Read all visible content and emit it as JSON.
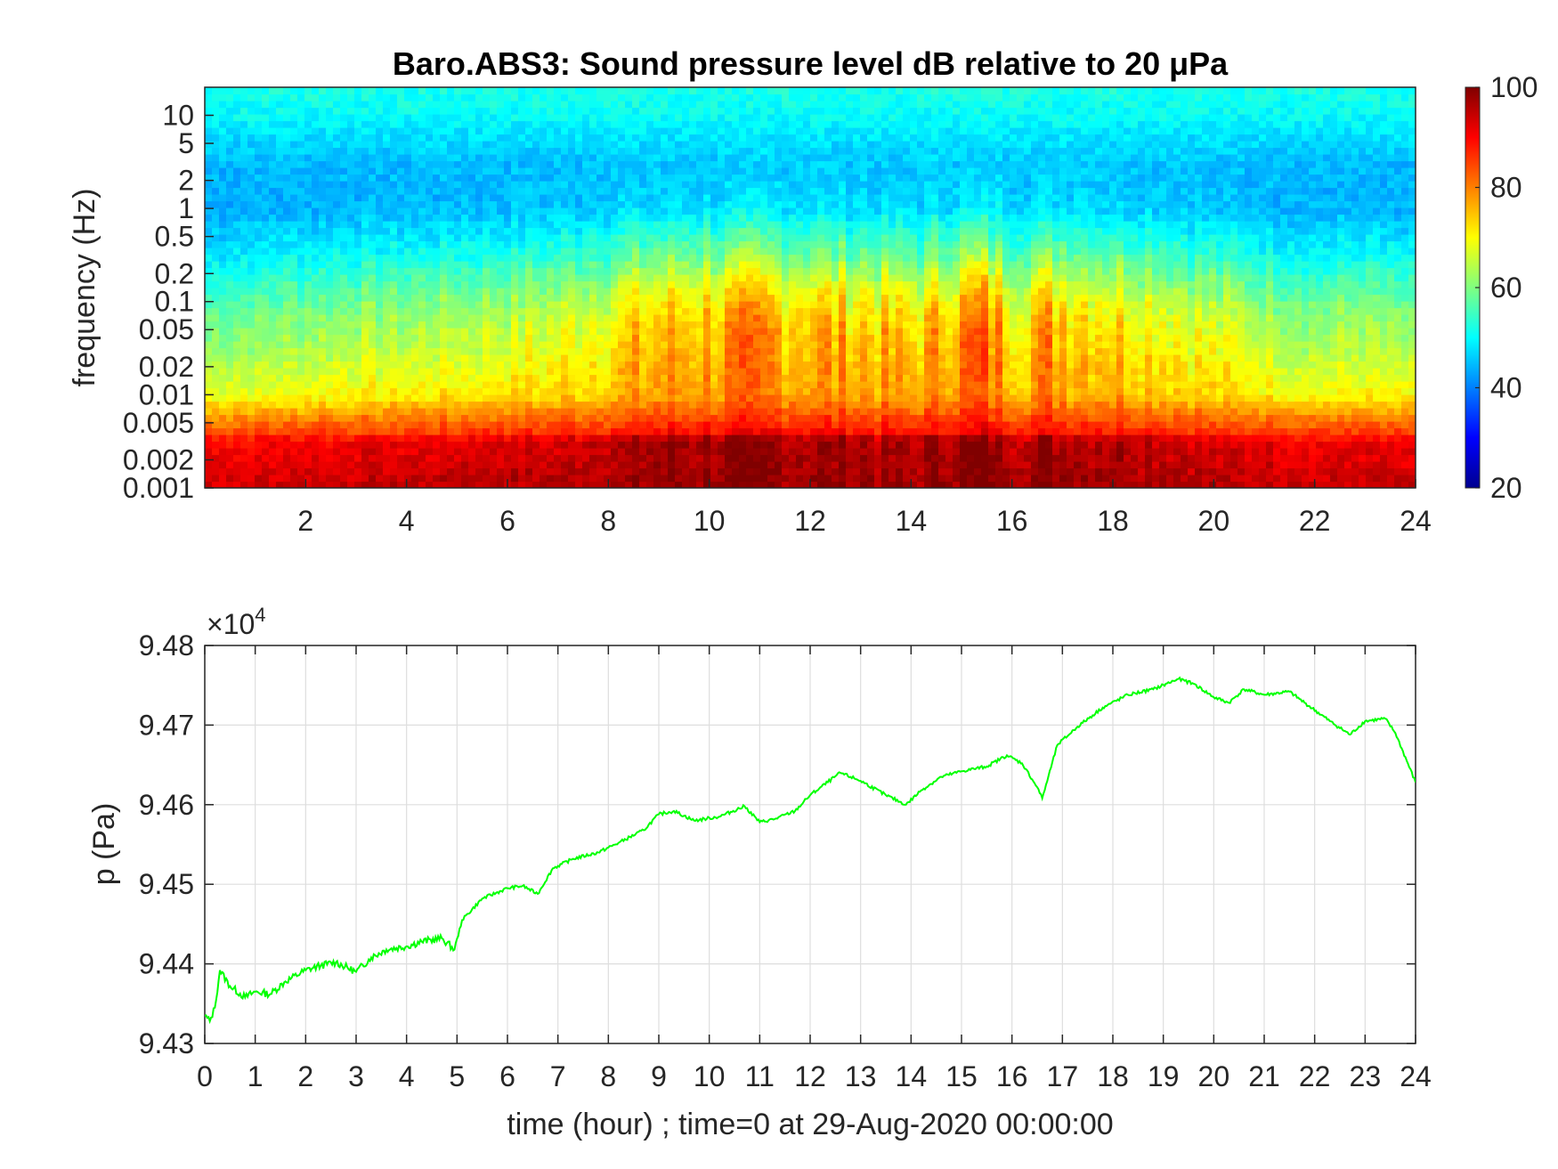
{
  "chart_data": [
    {
      "type": "heatmap",
      "title": "Baro.ABS3: Sound pressure level dB relative to 20 μPa",
      "ylabel": "frequency (Hz)",
      "xlabel": "",
      "xlim": [
        0,
        24
      ],
      "ylim": [
        0.001,
        20
      ],
      "yscale": "log",
      "xticks": [
        "2",
        "4",
        "6",
        "8",
        "10",
        "12",
        "14",
        "16",
        "18",
        "20",
        "22",
        "24"
      ],
      "yticks": [
        "0.001",
        "0.002",
        "0.005",
        "0.01",
        "0.02",
        "0.05",
        "0.1",
        "0.2",
        "0.5",
        "1",
        "2",
        "5",
        "10"
      ],
      "colormap": "jet",
      "colorbar": {
        "range": [
          20,
          100
        ],
        "ticks": [
          "20",
          "40",
          "60",
          "80",
          "100"
        ]
      },
      "grid": false,
      "band_levels_db": [
        {
          "freq_hz": 0.0012,
          "level": 92
        },
        {
          "freq_hz": 0.003,
          "level": 88
        },
        {
          "freq_hz": 0.006,
          "level": 76
        },
        {
          "freq_hz": 0.01,
          "level": 66
        },
        {
          "freq_hz": 0.03,
          "level": 58
        },
        {
          "freq_hz": 0.1,
          "level": 52
        },
        {
          "freq_hz": 0.3,
          "level": 46
        },
        {
          "freq_hz": 1,
          "level": 42
        },
        {
          "freq_hz": 3,
          "level": 44
        },
        {
          "freq_hz": 10,
          "level": 50
        },
        {
          "freq_hz": 20,
          "level": 52
        }
      ],
      "activity_by_hour": [
        {
          "hour": 0,
          "activity": 0.15
        },
        {
          "hour": 1,
          "activity": 0.2
        },
        {
          "hour": 2,
          "activity": 0.25
        },
        {
          "hour": 3,
          "activity": 0.3
        },
        {
          "hour": 4,
          "activity": 0.3
        },
        {
          "hour": 5,
          "activity": 0.35
        },
        {
          "hour": 6,
          "activity": 0.4
        },
        {
          "hour": 7,
          "activity": 0.45
        },
        {
          "hour": 8,
          "activity": 0.6
        },
        {
          "hour": 9,
          "activity": 0.75
        },
        {
          "hour": 10,
          "activity": 0.8
        },
        {
          "hour": 11,
          "activity": 0.85
        },
        {
          "hour": 12,
          "activity": 0.8
        },
        {
          "hour": 13,
          "activity": 0.75
        },
        {
          "hour": 14,
          "activity": 0.65
        },
        {
          "hour": 15.4,
          "activity": 1.0
        },
        {
          "hour": 16,
          "activity": 0.7
        },
        {
          "hour": 16.8,
          "activity": 0.85
        },
        {
          "hour": 18,
          "activity": 0.7
        },
        {
          "hour": 19,
          "activity": 0.6
        },
        {
          "hour": 20,
          "activity": 0.45
        },
        {
          "hour": 21,
          "activity": 0.35
        },
        {
          "hour": 22,
          "activity": 0.25
        },
        {
          "hour": 23,
          "activity": 0.3
        },
        {
          "hour": 24,
          "activity": 0.2
        }
      ]
    },
    {
      "type": "line",
      "title": "",
      "xlabel": "time (hour) ; time=0 at 29-Aug-2020 00:00:00",
      "ylabel": "p (Pa)",
      "xlim": [
        0,
        24
      ],
      "ylim": [
        94300,
        94800
      ],
      "xticks": [
        "0",
        "1",
        "2",
        "3",
        "4",
        "5",
        "6",
        "7",
        "8",
        "9",
        "10",
        "11",
        "12",
        "13",
        "14",
        "15",
        "16",
        "17",
        "18",
        "19",
        "20",
        "21",
        "22",
        "23",
        "24"
      ],
      "yticks": [
        "9.43",
        "9.44",
        "9.45",
        "9.46",
        "9.47",
        "9.48"
      ],
      "yexponent": "×10",
      "yexponent_power": "4",
      "grid": true,
      "line_color": "#00ff00",
      "series": [
        {
          "x": [
            0,
            0.1,
            0.2,
            0.3,
            0.5,
            0.8,
            1.0,
            1.3,
            1.6,
            2.0,
            2.3,
            2.6,
            3.0,
            3.3,
            3.6,
            4.0,
            4.3,
            4.7,
            4.95,
            5.1,
            5.5,
            6.0,
            6.3,
            6.6,
            6.9,
            7.3,
            7.8,
            8.2,
            8.7,
            9.0,
            9.3,
            9.7,
            10.2,
            10.7,
            11.0,
            11.3,
            11.7,
            12.0,
            12.6,
            13.0,
            13.5,
            13.9,
            14.2,
            14.6,
            15.0,
            15.5,
            15.9,
            16.2,
            16.5,
            16.6,
            16.9,
            17.3,
            17.8,
            18.3,
            18.8,
            19.3,
            19.6,
            20.0,
            20.3,
            20.6,
            21.0,
            21.5,
            21.8,
            22.3,
            22.7,
            23.0,
            23.4,
            23.6,
            24.0
          ],
          "values": [
            94335,
            94328,
            94345,
            94392,
            94372,
            94358,
            94365,
            94362,
            94378,
            94392,
            94398,
            94402,
            94390,
            94408,
            94418,
            94422,
            94428,
            94432,
            94418,
            94455,
            94482,
            94495,
            94498,
            94488,
            94520,
            94532,
            94540,
            94552,
            94568,
            94588,
            94592,
            94580,
            94585,
            94598,
            94578,
            94582,
            94592,
            94612,
            94640,
            94630,
            94612,
            94600,
            94618,
            94635,
            94642,
            94648,
            94662,
            94652,
            94622,
            94608,
            94675,
            94698,
            94722,
            94738,
            94745,
            94758,
            94752,
            94735,
            94728,
            94745,
            94738,
            94742,
            94728,
            94705,
            94688,
            94705,
            94708,
            94690,
            94628
          ]
        }
      ]
    }
  ]
}
